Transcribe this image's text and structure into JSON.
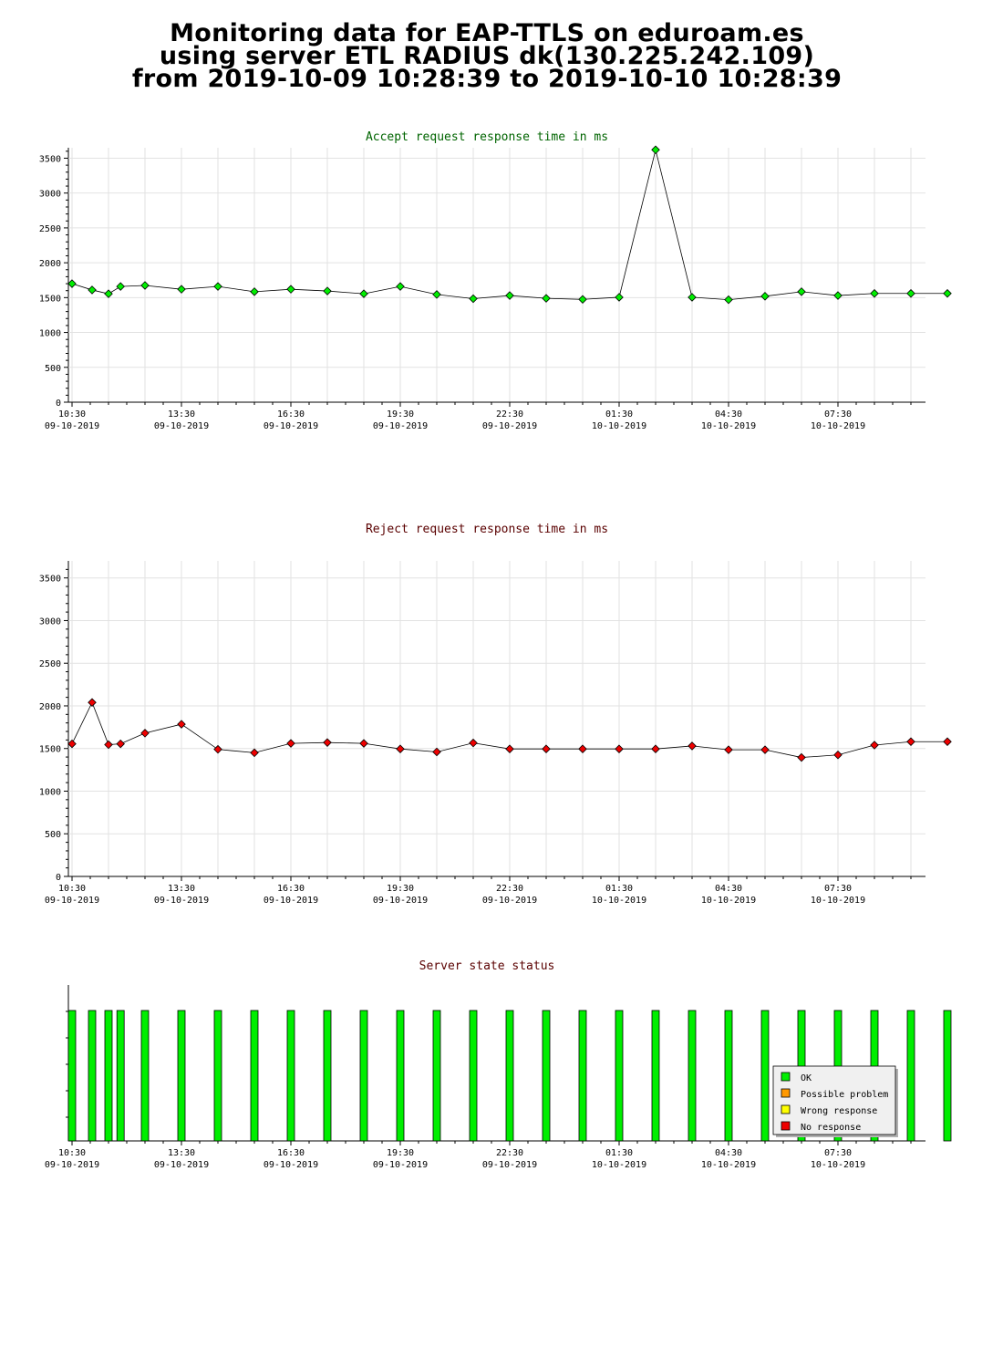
{
  "page": {
    "title_lines": [
      "Monitoring data for EAP-TTLS on eduroam.es",
      "using server ETL RADIUS dk(130.225.242.109)",
      "from 2019-10-09 10:28:39 to 2019-10-10 10:28:39"
    ]
  },
  "chart_data": [
    {
      "type": "line",
      "title": "Accept request response time in ms",
      "title_color": "#006400",
      "series": [
        {
          "color": "#00ee00",
          "x": [
            10.5,
            11.05,
            11.5,
            11.83,
            12.5,
            13.5,
            14.5,
            15.5,
            16.5,
            17.5,
            18.5,
            19.5,
            20.5,
            21.5,
            22.5,
            23.5,
            24.5,
            25.5,
            26.5,
            27.5,
            28.5,
            29.5,
            30.5,
            31.5,
            32.5,
            33.5,
            34.5
          ],
          "values": [
            1700,
            1610,
            1555,
            1660,
            1675,
            1620,
            1660,
            1585,
            1620,
            1595,
            1555,
            1660,
            1545,
            1485,
            1530,
            1490,
            1475,
            1505,
            3620,
            1505,
            1470,
            1520,
            1585,
            1530,
            1560,
            1560,
            1560
          ]
        }
      ],
      "ylim": [
        0,
        3650
      ],
      "y_ticks": [
        0,
        500,
        1000,
        1500,
        2000,
        2500,
        3000,
        3500
      ],
      "x_ticks": [
        {
          "time": "10:30",
          "date": "09-10-2019"
        },
        {
          "time": "13:30",
          "date": "09-10-2019"
        },
        {
          "time": "16:30",
          "date": "09-10-2019"
        },
        {
          "time": "19:30",
          "date": "09-10-2019"
        },
        {
          "time": "22:30",
          "date": "09-10-2019"
        },
        {
          "time": "01:30",
          "date": "10-10-2019"
        },
        {
          "time": "04:30",
          "date": "10-10-2019"
        },
        {
          "time": "07:30",
          "date": "10-10-2019"
        }
      ],
      "grid": true
    },
    {
      "type": "line",
      "title": "Reject request response time in ms",
      "title_color": "#5a0000",
      "series": [
        {
          "color": "#ee0000",
          "x": [
            10.5,
            11.05,
            11.5,
            11.83,
            12.5,
            13.5,
            14.5,
            15.5,
            16.5,
            17.5,
            18.5,
            19.5,
            20.5,
            21.5,
            22.5,
            23.5,
            24.5,
            25.5,
            26.5,
            27.5,
            28.5,
            29.5,
            30.5,
            31.5,
            32.5,
            33.5,
            34.5
          ],
          "values": [
            1555,
            2040,
            1545,
            1555,
            1680,
            1785,
            1490,
            1450,
            1560,
            1570,
            1560,
            1495,
            1460,
            1565,
            1495,
            1495,
            1495,
            1495,
            1495,
            1530,
            1485,
            1485,
            1395,
            1425,
            1540,
            1580,
            1580
          ]
        }
      ],
      "ylim": [
        0,
        3700
      ],
      "y_ticks": [
        0,
        500,
        1000,
        1500,
        2000,
        2500,
        3000,
        3500
      ],
      "x_ticks": [
        {
          "time": "10:30",
          "date": "09-10-2019"
        },
        {
          "time": "13:30",
          "date": "09-10-2019"
        },
        {
          "time": "16:30",
          "date": "09-10-2019"
        },
        {
          "time": "19:30",
          "date": "09-10-2019"
        },
        {
          "time": "22:30",
          "date": "09-10-2019"
        },
        {
          "time": "01:30",
          "date": "10-10-2019"
        },
        {
          "time": "04:30",
          "date": "10-10-2019"
        },
        {
          "time": "07:30",
          "date": "10-10-2019"
        }
      ],
      "grid": true
    },
    {
      "type": "bar",
      "title": "Server state status",
      "title_color": "#5a0000",
      "states": [
        {
          "label": "OK",
          "color": "#00ee00"
        },
        {
          "label": "Possible problem",
          "color": "#ff9900"
        },
        {
          "label": "Wrong response",
          "color": "#ffff00"
        },
        {
          "label": "No response",
          "color": "#ee0000"
        }
      ],
      "x": [
        10.5,
        11.05,
        11.5,
        11.83,
        12.5,
        13.5,
        14.5,
        15.5,
        16.5,
        17.5,
        18.5,
        19.5,
        20.5,
        21.5,
        22.5,
        23.5,
        24.5,
        25.5,
        26.5,
        27.5,
        28.5,
        29.5,
        30.5,
        31.5,
        32.5,
        33.5,
        34.5
      ],
      "status": [
        "OK",
        "OK",
        "OK",
        "OK",
        "OK",
        "OK",
        "OK",
        "OK",
        "OK",
        "OK",
        "OK",
        "OK",
        "OK",
        "OK",
        "OK",
        "OK",
        "OK",
        "OK",
        "OK",
        "OK",
        "OK",
        "OK",
        "OK",
        "OK",
        "OK",
        "OK",
        "OK"
      ],
      "x_ticks": [
        {
          "time": "10:30",
          "date": "09-10-2019"
        },
        {
          "time": "13:30",
          "date": "09-10-2019"
        },
        {
          "time": "16:30",
          "date": "09-10-2019"
        },
        {
          "time": "19:30",
          "date": "09-10-2019"
        },
        {
          "time": "22:30",
          "date": "09-10-2019"
        },
        {
          "time": "01:30",
          "date": "10-10-2019"
        },
        {
          "time": "04:30",
          "date": "10-10-2019"
        },
        {
          "time": "07:30",
          "date": "10-10-2019"
        }
      ],
      "legend_position": "lower-right"
    }
  ]
}
